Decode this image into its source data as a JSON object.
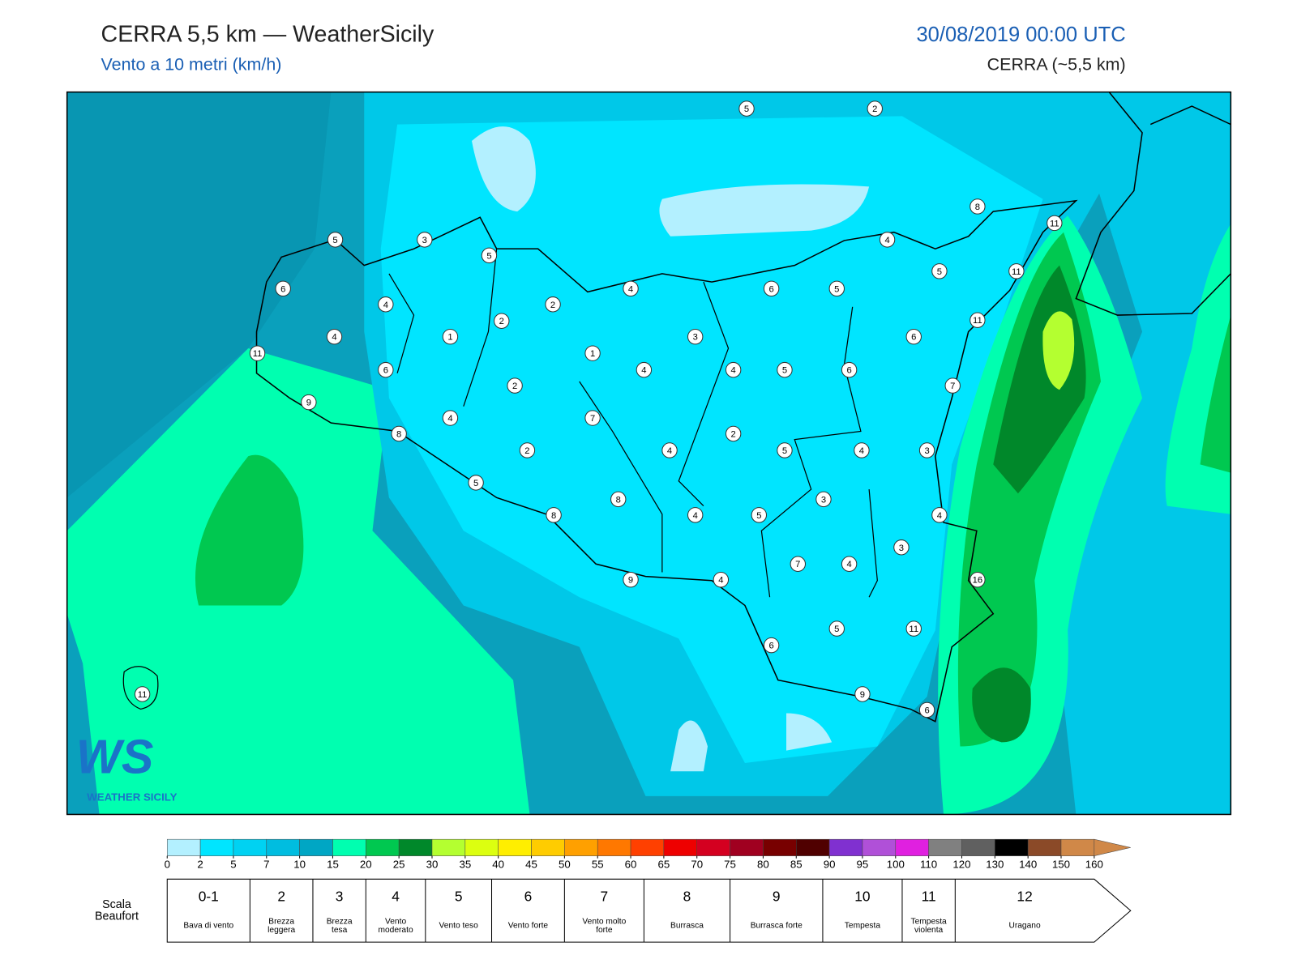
{
  "header": {
    "title": "CERRA 5,5 km — WeatherSicily",
    "subtitle": "Vento a 10 metri (km/h)",
    "datetime": "30/08/2019 00:00 UTC",
    "model": "CERRA (~5,5 km)"
  },
  "logo": {
    "mark": "WS",
    "name": "WEATHER SICILY"
  },
  "map": {
    "stations": [
      5,
      2,
      8,
      11,
      5,
      3,
      5,
      4,
      5,
      11,
      6,
      4,
      6,
      5,
      4,
      2,
      2,
      11,
      4,
      1,
      3,
      6,
      11,
      1,
      4,
      4,
      5,
      6,
      6,
      2,
      7,
      9,
      4,
      7,
      8,
      2,
      2,
      4,
      5,
      4,
      3,
      5,
      8,
      3,
      8,
      4,
      5,
      4,
      3,
      7,
      4,
      9,
      4,
      16,
      5,
      11,
      6,
      11,
      9,
      6
    ]
  },
  "colorbar": {
    "ticks": [
      0,
      2,
      5,
      7,
      10,
      15,
      20,
      25,
      30,
      35,
      40,
      45,
      50,
      55,
      60,
      65,
      70,
      75,
      80,
      85,
      90,
      95,
      100,
      110,
      120,
      130,
      140,
      150,
      160
    ],
    "colors": [
      "#b3f0ff",
      "#00e5ff",
      "#00d2f2",
      "#00bde0",
      "#00a6c4",
      "#00ffb0",
      "#00c850",
      "#00882a",
      "#b4ff30",
      "#dcff10",
      "#ffee00",
      "#ffcc00",
      "#ffa000",
      "#ff7800",
      "#ff4000",
      "#ee0000",
      "#d40020",
      "#a00020",
      "#780000",
      "#500000",
      "#8030d0",
      "#b050d8",
      "#e020e0",
      "#808080",
      "#606060",
      "#000000",
      "#8b4a28",
      "#d08848"
    ]
  },
  "beaufort": {
    "title": "Scala Beaufort",
    "levels": [
      {
        "force": "0-1",
        "name": "Bava di vento"
      },
      {
        "force": "2",
        "name": "Brezza leggera"
      },
      {
        "force": "3",
        "name": "Brezza tesa"
      },
      {
        "force": "4",
        "name": "Vento moderato"
      },
      {
        "force": "5",
        "name": "Vento teso"
      },
      {
        "force": "6",
        "name": "Vento forte"
      },
      {
        "force": "7",
        "name": "Vento molto forte"
      },
      {
        "force": "8",
        "name": "Burrasca"
      },
      {
        "force": "9",
        "name": "Burrasca forte"
      },
      {
        "force": "10",
        "name": "Tempesta"
      },
      {
        "force": "11",
        "name": "Tempesta violenta"
      },
      {
        "force": "12",
        "name": "Uragano"
      }
    ]
  }
}
